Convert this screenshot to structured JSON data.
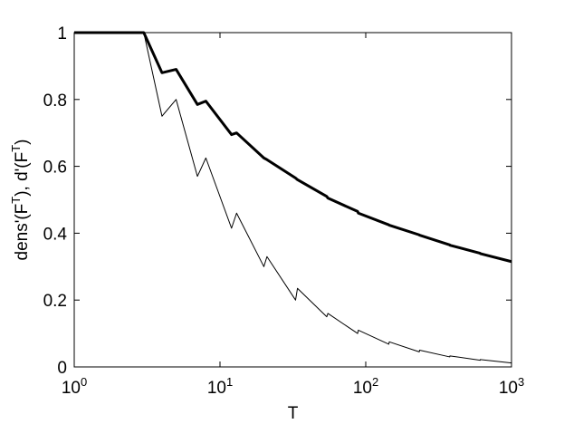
{
  "chart_data": {
    "type": "line",
    "xlabel": "T",
    "ylabel": "dens'(F^T), d'(F^T)",
    "x": [
      1,
      3,
      4,
      5,
      7,
      8,
      12,
      13,
      20,
      21,
      33,
      34,
      54,
      55,
      88,
      89,
      144,
      145,
      233,
      234,
      377,
      378,
      610,
      611,
      1000
    ],
    "series": [
      {
        "color": "#000000",
        "linewidth": 3,
        "values": [
          1,
          1,
          0.88,
          0.89,
          0.785,
          0.795,
          0.695,
          0.7,
          0.625,
          0.62,
          0.565,
          0.56,
          0.51,
          0.505,
          0.465,
          0.46,
          0.425,
          0.424,
          0.395,
          0.394,
          0.365,
          0.364,
          0.34,
          0.339,
          0.315
        ]
      },
      {
        "color": "#000000",
        "linewidth": 1,
        "values": [
          1,
          1,
          0.75,
          0.8,
          0.57,
          0.625,
          0.415,
          0.46,
          0.3,
          0.33,
          0.2,
          0.235,
          0.15,
          0.16,
          0.1,
          0.11,
          0.068,
          0.075,
          0.045,
          0.05,
          0.03,
          0.033,
          0.02,
          0.022,
          0.012
        ]
      }
    ],
    "xscale": "log",
    "xlim": [
      1,
      1000
    ],
    "xticks": [
      {
        "value": 1,
        "label": "10^0"
      },
      {
        "value": 10,
        "label": "10^1"
      },
      {
        "value": 100,
        "label": "10^2"
      },
      {
        "value": 1000,
        "label": "10^3"
      }
    ],
    "ylim": [
      0,
      1
    ],
    "yticks": [
      0,
      0.2,
      0.4,
      0.6,
      0.8,
      1
    ]
  }
}
